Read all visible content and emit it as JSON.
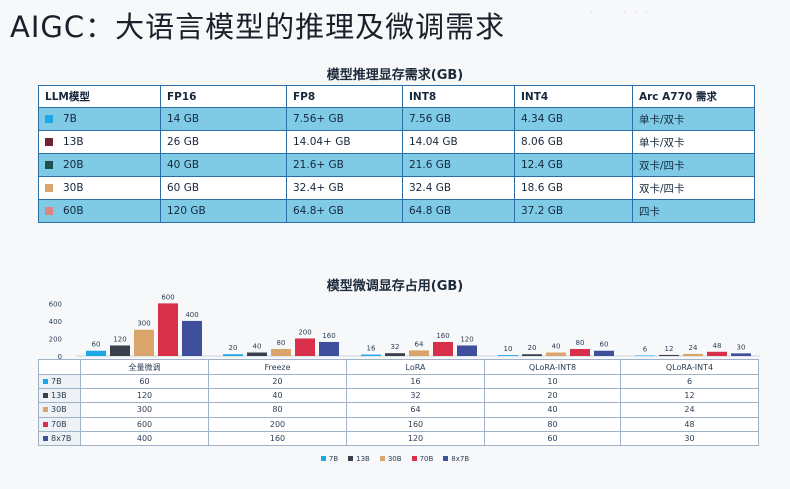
{
  "slide": {
    "title": "AIGC：大语言模型的推理及微调需求",
    "corner_mark": "· · · · · ·"
  },
  "inference": {
    "title": "模型推理显存需求(GB)",
    "columns": [
      "LLM模型",
      "FP16",
      "FP8",
      "INT8",
      "INT4",
      "Arc A770 需求"
    ],
    "rows": [
      {
        "model": "7B",
        "color": "#1ea7e6",
        "fp16": "14 GB",
        "fp8": "7.56+ GB",
        "int8": "7.56 GB",
        "int4": "4.34 GB",
        "arc": "单卡/双卡"
      },
      {
        "model": "13B",
        "color": "#6b2630",
        "fp16": "26 GB",
        "fp8": "14.04+ GB",
        "int8": "14.04 GB",
        "int4": "8.06 GB",
        "arc": "单卡/双卡"
      },
      {
        "model": "20B",
        "color": "#1f4f4a",
        "fp16": "40 GB",
        "fp8": "21.6+ GB",
        "int8": "21.6 GB",
        "int4": "12.4 GB",
        "arc": "双卡/四卡"
      },
      {
        "model": "30B",
        "color": "#d9a56a",
        "fp16": "60 GB",
        "fp8": "32.4+ GB",
        "int8": "32.4 GB",
        "int4": "18.6 GB",
        "arc": "双卡/四卡"
      },
      {
        "model": "60B",
        "color": "#e0847e",
        "fp16": "120 GB",
        "fp8": "64.8+ GB",
        "int8": "64.8 GB",
        "int4": "37.2 GB",
        "arc": "四卡"
      }
    ]
  },
  "chart_data": {
    "type": "bar",
    "title": "模型微调显存占用(GB)",
    "categories": [
      "全量微调",
      "Freeze",
      "LoRA",
      "QLoRA-INT8",
      "QLoRA-INT4"
    ],
    "series": [
      {
        "name": "7B",
        "color": "#1ea7e6",
        "values": [
          60,
          20,
          16,
          10,
          6
        ]
      },
      {
        "name": "13B",
        "color": "#3a3f4c",
        "values": [
          120,
          40,
          32,
          20,
          12
        ]
      },
      {
        "name": "30B",
        "color": "#d9a56a",
        "values": [
          300,
          80,
          64,
          40,
          24
        ]
      },
      {
        "name": "70B",
        "color": "#d8304a",
        "values": [
          600,
          200,
          160,
          80,
          48
        ]
      },
      {
        "name": "8x7B",
        "color": "#3f4f9b",
        "values": [
          400,
          160,
          120,
          60,
          30
        ]
      }
    ],
    "yticks": [
      "600",
      "400",
      "200",
      "0"
    ],
    "ylim": [
      0,
      650
    ],
    "legend_position": "bottom"
  }
}
